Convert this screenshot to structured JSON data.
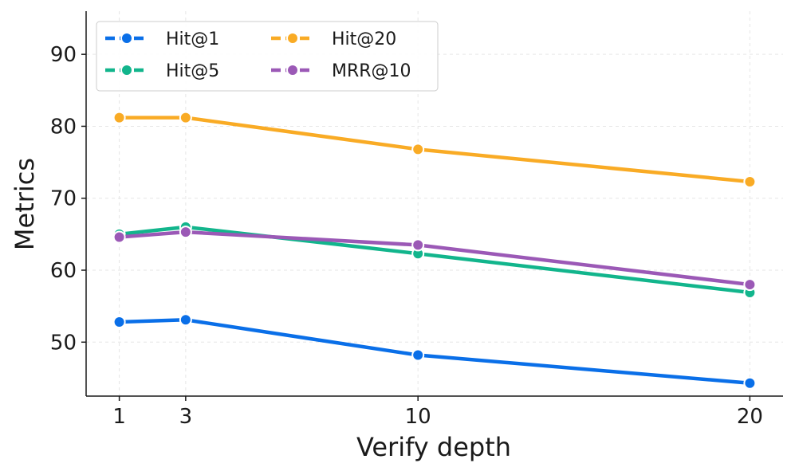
{
  "chart_data": {
    "type": "line",
    "title": "",
    "xlabel": "Verify depth",
    "ylabel": "Metrics",
    "x": [
      1,
      3,
      10,
      20
    ],
    "x_tick_labels": [
      "1",
      "3",
      "10",
      "20"
    ],
    "y_ticks": [
      50,
      60,
      70,
      80,
      90
    ],
    "y_tick_labels": [
      "50",
      "60",
      "70",
      "80",
      "90"
    ],
    "xlim": [
      0.0,
      21.0
    ],
    "ylim": [
      42.5,
      96.0
    ],
    "grid": true,
    "legend_position": "top-left",
    "series": [
      {
        "name": "Hit@1",
        "color": "#0a6fe8",
        "values": [
          52.8,
          53.1,
          48.2,
          44.3
        ]
      },
      {
        "name": "Hit@5",
        "color": "#12b58c",
        "values": [
          65.0,
          66.0,
          62.3,
          56.9
        ]
      },
      {
        "name": "Hit@20",
        "color": "#f9ab25",
        "values": [
          81.2,
          81.2,
          76.8,
          72.3
        ]
      },
      {
        "name": "MRR@10",
        "color": "#9b59b6",
        "values": [
          64.6,
          65.3,
          63.5,
          58.0
        ]
      }
    ]
  }
}
